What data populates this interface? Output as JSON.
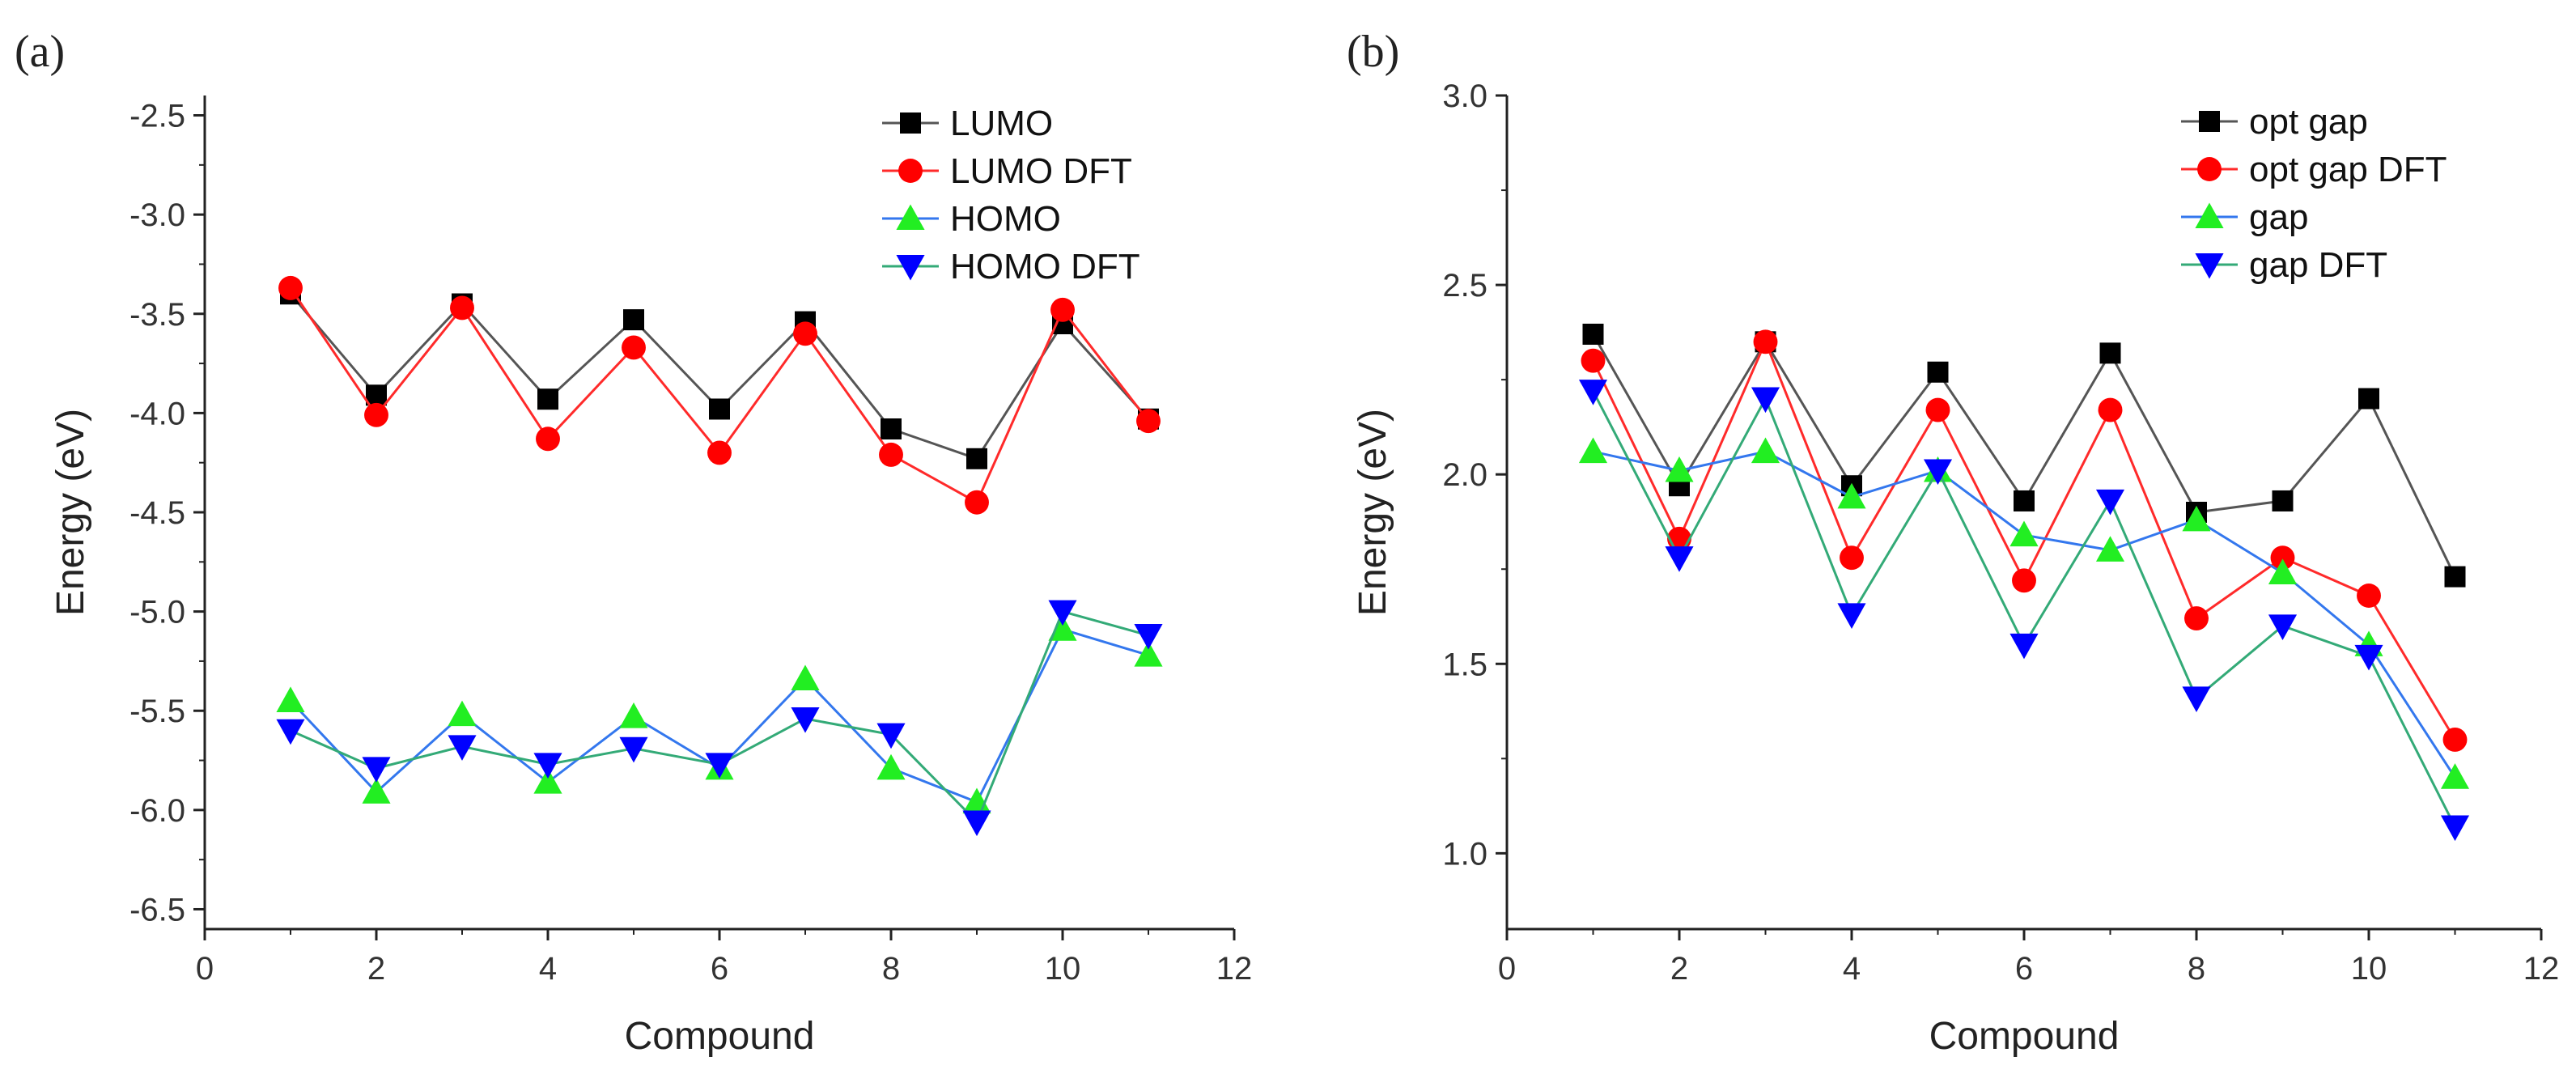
{
  "chart_data": [
    {
      "panel_label": "(a)",
      "type": "line",
      "xlabel": "Compound",
      "ylabel": "Energy (eV)",
      "xlim": [
        0,
        12
      ],
      "ylim": [
        -6.6,
        -2.4
      ],
      "xticks": [
        "0",
        "2",
        "4",
        "6",
        "8",
        "10",
        "12"
      ],
      "yticks": [
        "-6.5",
        "-6.0",
        "-5.5",
        "-5.0",
        "-4.5",
        "-4.0",
        "-3.5",
        "-3.0",
        "-2.5"
      ],
      "legend_position": "top-right",
      "grid": false,
      "x": [
        1,
        2,
        3,
        4,
        5,
        6,
        7,
        8,
        9,
        10,
        11
      ],
      "series": [
        {
          "name": "LUMO",
          "line_color": "#555555",
          "marker_color": "#000000",
          "marker": "square",
          "values": [
            -3.4,
            -3.91,
            -3.45,
            -3.93,
            -3.53,
            -3.98,
            -3.54,
            -4.08,
            -4.23,
            -3.55,
            -4.03
          ]
        },
        {
          "name": "LUMO DFT",
          "line_color": "#ff2a2a",
          "marker_color": "#ff0000",
          "marker": "circle",
          "values": [
            -3.37,
            -4.01,
            -3.47,
            -4.13,
            -3.67,
            -4.2,
            -3.6,
            -4.21,
            -4.45,
            -3.48,
            -4.04
          ]
        },
        {
          "name": "HOMO",
          "line_color": "#3377ee",
          "marker_color": "#22ee22",
          "marker": "triangle-up",
          "values": [
            -5.45,
            -5.91,
            -5.52,
            -5.86,
            -5.53,
            -5.79,
            -5.34,
            -5.79,
            -5.96,
            -5.09,
            -5.22
          ]
        },
        {
          "name": "HOMO DFT",
          "line_color": "#33aa77",
          "marker_color": "#0000ff",
          "marker": "triangle-down",
          "values": [
            -5.6,
            -5.79,
            -5.68,
            -5.77,
            -5.69,
            -5.77,
            -5.54,
            -5.62,
            -6.06,
            -5.0,
            -5.12
          ]
        }
      ]
    },
    {
      "panel_label": "(b)",
      "type": "line",
      "xlabel": "Compound",
      "ylabel": "Energy (eV)",
      "xlim": [
        0,
        12
      ],
      "ylim": [
        0.8,
        3.0
      ],
      "xticks": [
        "0",
        "2",
        "4",
        "6",
        "8",
        "10",
        "12"
      ],
      "yticks": [
        "1.0",
        "1.5",
        "2.0",
        "2.5",
        "3.0"
      ],
      "legend_position": "top-right",
      "grid": false,
      "x": [
        1,
        2,
        3,
        4,
        5,
        6,
        7,
        8,
        9,
        10,
        11
      ],
      "series": [
        {
          "name": "opt gap",
          "line_color": "#555555",
          "marker_color": "#000000",
          "marker": "square",
          "values": [
            2.37,
            1.97,
            2.35,
            1.97,
            2.27,
            1.93,
            2.32,
            1.9,
            1.93,
            2.2,
            1.73
          ]
        },
        {
          "name": "opt gap DFT",
          "line_color": "#ff2a2a",
          "marker_color": "#ff0000",
          "marker": "circle",
          "values": [
            2.3,
            1.83,
            2.35,
            1.78,
            2.17,
            1.72,
            2.17,
            1.62,
            1.78,
            1.68,
            1.3
          ]
        },
        {
          "name": "gap",
          "line_color": "#3377ee",
          "marker_color": "#22ee22",
          "marker": "triangle-up",
          "values": [
            2.06,
            2.01,
            2.06,
            1.94,
            2.01,
            1.84,
            1.8,
            1.88,
            1.74,
            1.55,
            1.2
          ]
        },
        {
          "name": "gap DFT",
          "line_color": "#33aa77",
          "marker_color": "#0000ff",
          "marker": "triangle-down",
          "values": [
            2.22,
            1.78,
            2.2,
            1.63,
            2.01,
            1.55,
            1.93,
            1.41,
            1.6,
            1.52,
            1.07
          ]
        }
      ]
    }
  ]
}
